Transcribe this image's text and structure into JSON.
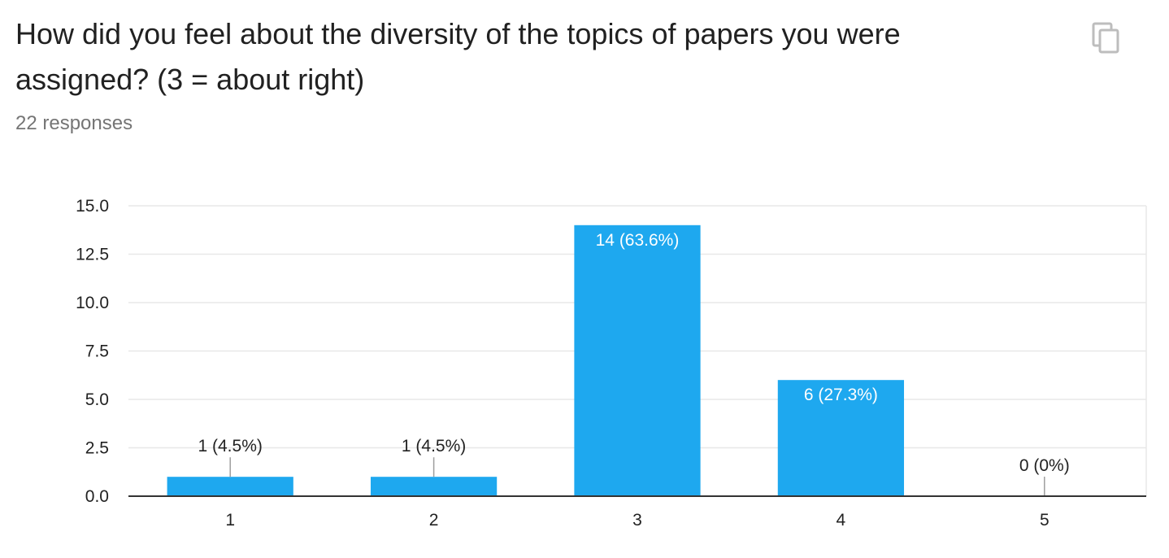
{
  "question": {
    "title": "How did you feel about the diversity of the topics of papers you were assigned? (3 = about right)",
    "responses": "22 responses"
  },
  "toolbar": {
    "copy_icon": "copy-icon"
  },
  "colors": {
    "bar": "#1ea8ef",
    "gridline": "#e8e8e8",
    "axis": "#333333",
    "label_inside": "#ffffff",
    "label_outside": "#222222",
    "leader": "#9e9e9e",
    "icon": "#bdbdbd"
  },
  "chart_data": {
    "type": "bar",
    "categories": [
      "1",
      "2",
      "3",
      "4",
      "5"
    ],
    "values": [
      1,
      1,
      14,
      6,
      0
    ],
    "data_labels": [
      "1 (4.5%)",
      "1 (4.5%)",
      "14 (63.6%)",
      "6 (27.3%)",
      "0 (0%)"
    ],
    "y_ticks": [
      "0.0",
      "2.5",
      "5.0",
      "7.5",
      "10.0",
      "12.5",
      "15.0"
    ],
    "ylim": [
      0,
      15
    ],
    "grid": true,
    "legend": "none"
  }
}
